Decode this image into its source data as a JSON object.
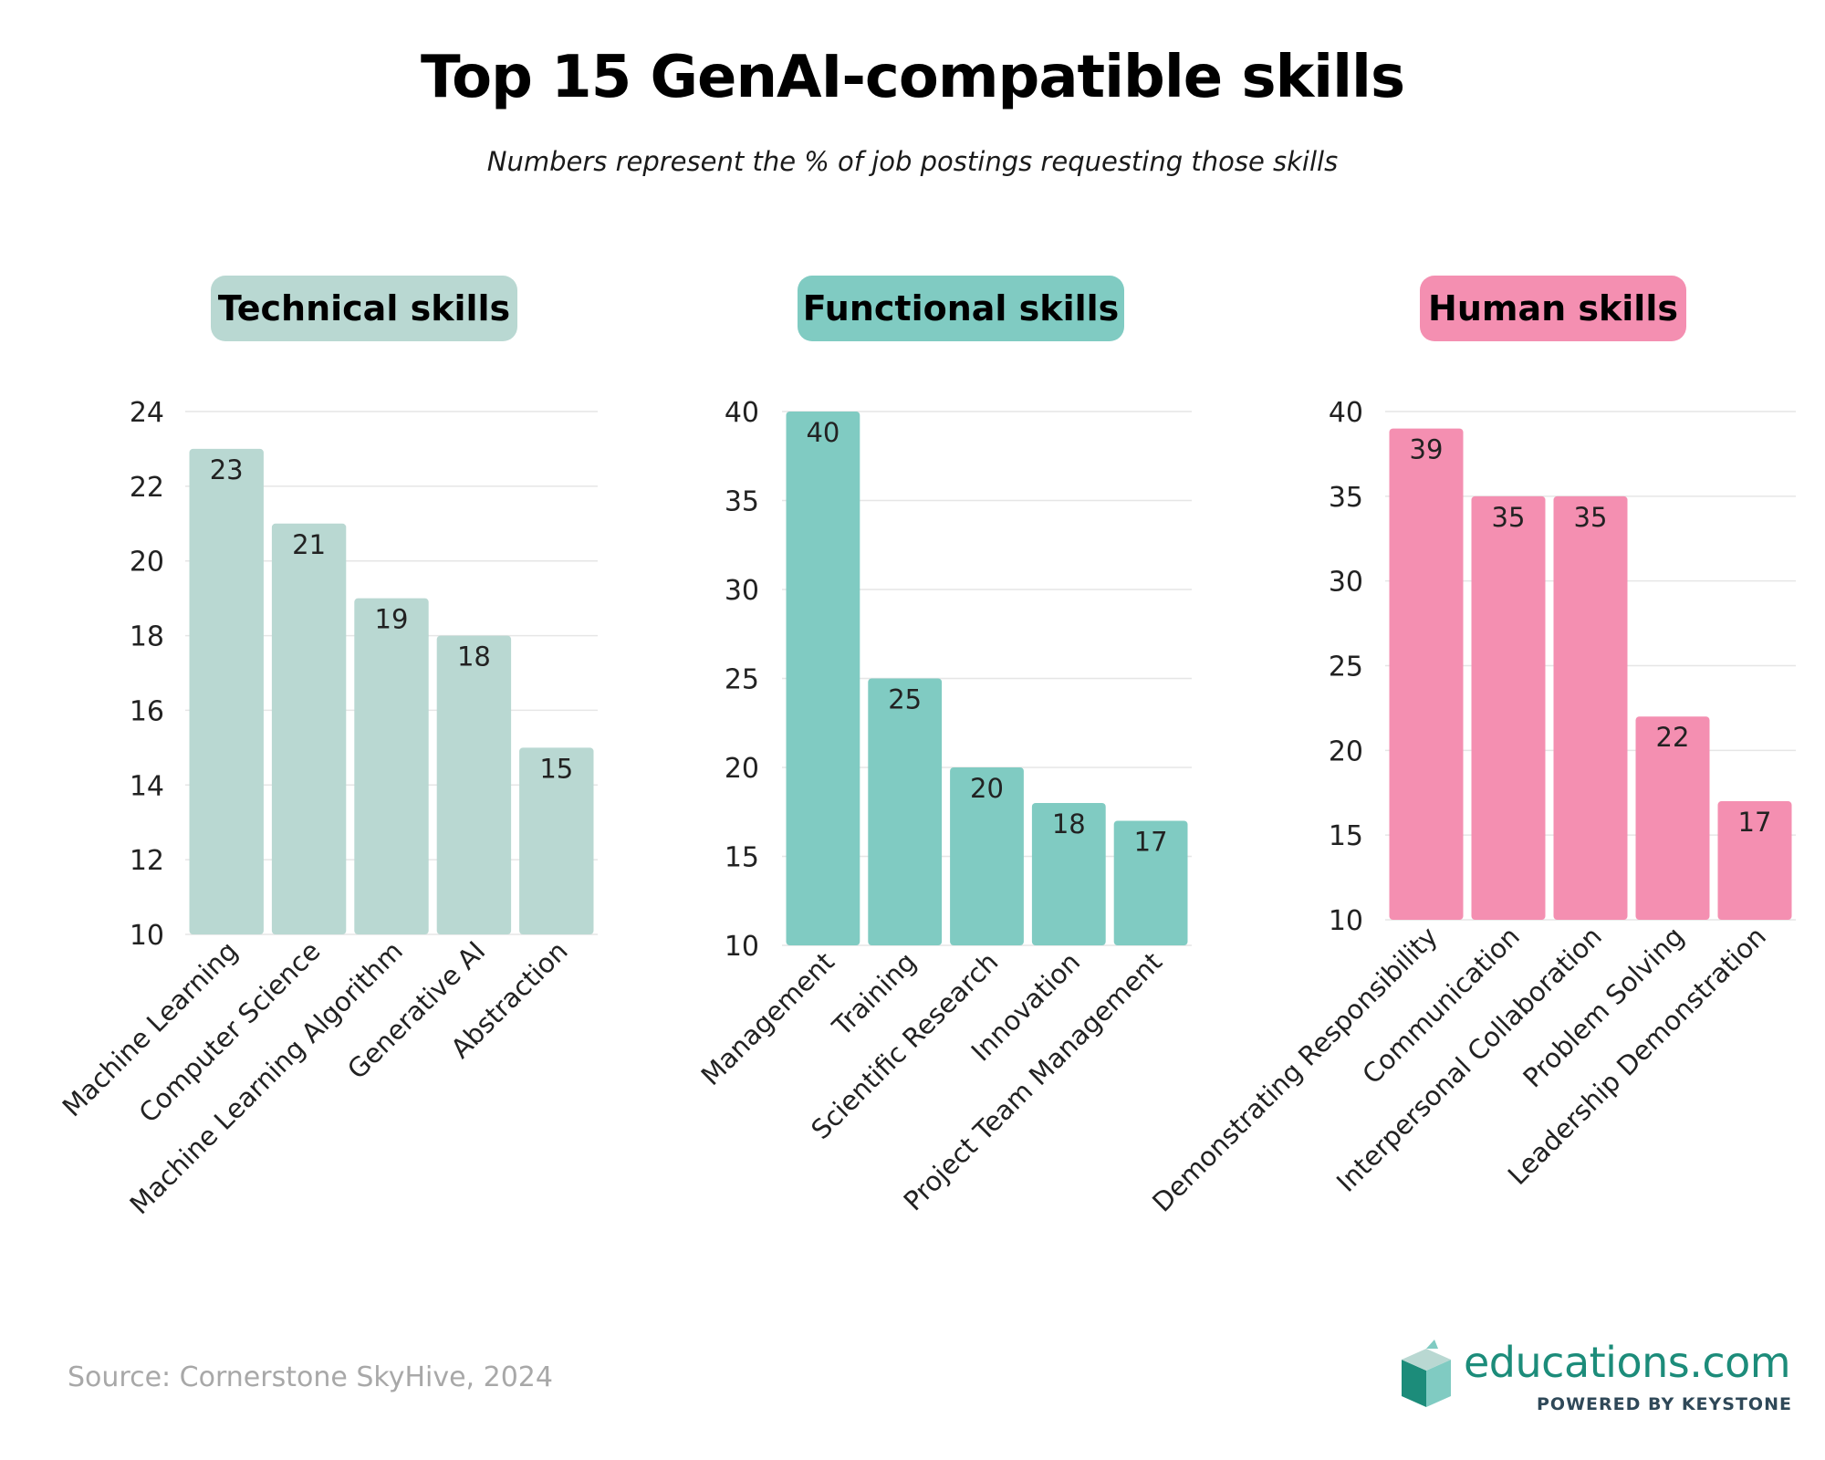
{
  "title": "Top 15 GenAI-compatible skills",
  "subtitle": "Numbers represent the % of job postings requesting those skills",
  "source": "Source: Cornerstone SkyHive, 2024",
  "brand": {
    "name": "educations.com",
    "tagline": "POWERED BY KEYSTONE",
    "logo_icon": "open-book-icon",
    "color": "#1c8c7a"
  },
  "chart_data": [
    {
      "type": "bar",
      "title": "Technical skills",
      "color": "#b9d8d2",
      "title_bg": "#b9d8d2",
      "categories": [
        "Machine Learning",
        "Computer Science",
        "Machine Learning Algorithm",
        "Generative AI",
        "Abstraction"
      ],
      "values": [
        23,
        21,
        19,
        18,
        15
      ],
      "ylim": [
        10,
        24
      ],
      "yticks": [
        10,
        12,
        14,
        16,
        18,
        20,
        22,
        24
      ],
      "grid": true
    },
    {
      "type": "bar",
      "title": "Functional skills",
      "color": "#80cbc2",
      "title_bg": "#80cbc2",
      "categories": [
        "Management",
        "Training",
        "Scientific Research",
        "Innovation",
        "Project Team Management"
      ],
      "values": [
        40,
        25,
        20,
        18,
        17
      ],
      "ylim": [
        10,
        40
      ],
      "yticks": [
        10,
        15,
        20,
        25,
        30,
        35,
        40
      ],
      "grid": true
    },
    {
      "type": "bar",
      "title": "Human skills",
      "color": "#f48fb1",
      "title_bg": "#f48fb1",
      "categories": [
        "Demonstrating Responsibility",
        "Communication",
        "Interpersonal Collaboration",
        "Problem Solving",
        "Leadership Demonstration"
      ],
      "values": [
        39,
        35,
        35,
        22,
        17
      ],
      "ylim": [
        10,
        40
      ],
      "yticks": [
        10,
        15,
        20,
        25,
        30,
        35,
        40
      ],
      "grid": true
    }
  ]
}
